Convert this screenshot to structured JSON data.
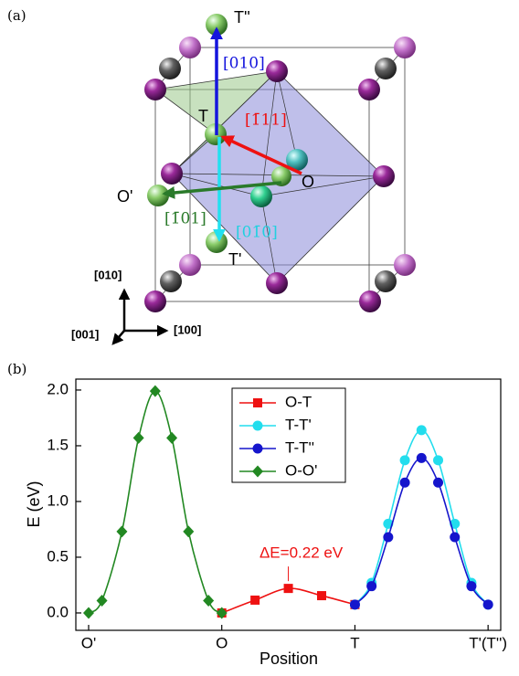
{
  "panel_a": {
    "label": "(a)",
    "site_labels": [
      "T''",
      "T",
      "O",
      "O'",
      "T'"
    ],
    "directions": [
      "[010]",
      "[1̄11]",
      "[01̄0]",
      "[1̄01]"
    ],
    "axes": [
      "[010]",
      "[001]",
      "[100]"
    ]
  },
  "chart_data": {
    "type": "line",
    "panel_label": "(b)",
    "x_label": "Position",
    "y_label": "E (eV)",
    "annotation": "ΔE=0.22 eV",
    "xlim": [
      -0.096,
      3.095
    ],
    "ylim": [
      -0.156,
      2.098
    ],
    "xticks": [
      {
        "value": 0,
        "label": "O'"
      },
      {
        "value": 1,
        "label": "O"
      },
      {
        "value": 2,
        "label": "T"
      },
      {
        "value": 3,
        "label": "T'(T'')"
      }
    ],
    "yticks": [
      {
        "value": 0,
        "label": "0.0"
      },
      0.5,
      {
        "value": 1,
        "label": "1.0"
      },
      1.5,
      {
        "value": 2,
        "label": "2.0"
      }
    ],
    "series": [
      {
        "name": "O-T",
        "color": "#ee1111",
        "marker": "square",
        "x": [
          1,
          1.25,
          1.5,
          1.75,
          2
        ],
        "values": [
          0,
          0.115,
          0.22,
          0.155,
          0.075
        ]
      },
      {
        "name": "T-T'",
        "color": "#22dded",
        "marker": "circle",
        "x": [
          2,
          2.125,
          2.25,
          2.375,
          2.5,
          2.625,
          2.75,
          2.875,
          3
        ],
        "values": [
          0.075,
          0.27,
          0.8,
          1.37,
          1.64,
          1.37,
          0.8,
          0.27,
          0.075
        ]
      },
      {
        "name": "T-T''",
        "color": "#1515cc",
        "marker": "circle",
        "x": [
          2,
          2.125,
          2.25,
          2.375,
          2.5,
          2.625,
          2.75,
          2.875,
          3
        ],
        "values": [
          0.075,
          0.24,
          0.68,
          1.17,
          1.39,
          1.17,
          0.68,
          0.24,
          0.075
        ]
      },
      {
        "name": "O-O'",
        "color": "#228822",
        "marker": "diamond",
        "x": [
          0,
          0.1,
          0.25,
          0.375,
          0.5,
          0.625,
          0.75,
          0.9,
          1
        ],
        "values": [
          0,
          0.11,
          0.73,
          1.57,
          1.99,
          1.57,
          0.73,
          0.11,
          0
        ]
      }
    ]
  }
}
